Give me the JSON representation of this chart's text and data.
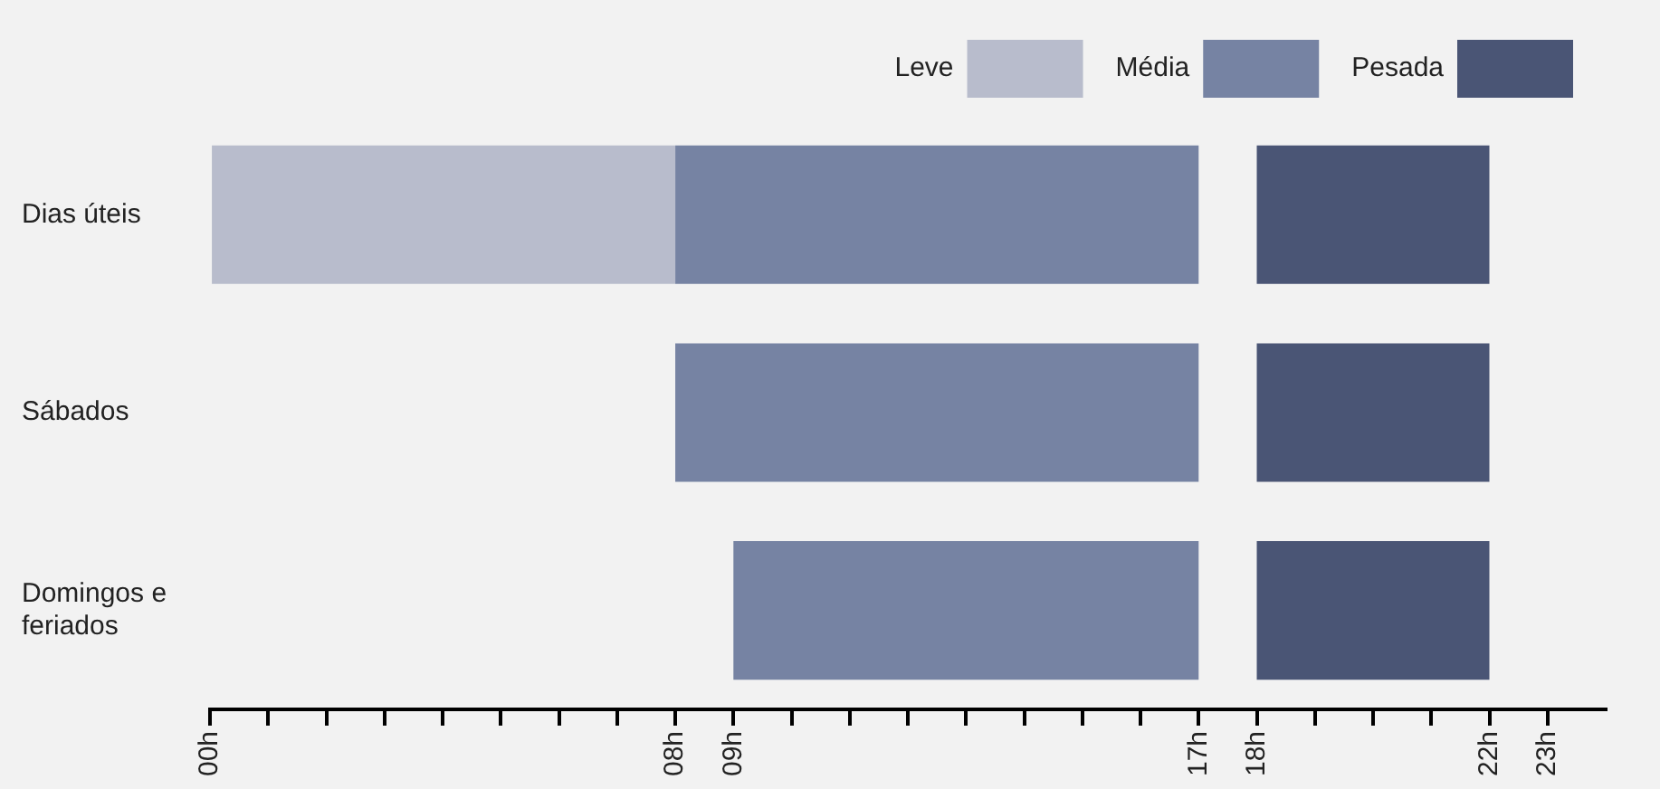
{
  "chart_data": {
    "type": "bar",
    "orientation": "horizontal",
    "categories": [
      "Dias úteis",
      "Sábados",
      "Domingos e feriados"
    ],
    "series": [
      {
        "name": "Leve",
        "color": "#b8bccc",
        "values": [
          8,
          null,
          null
        ],
        "base": [
          0,
          null,
          null
        ]
      },
      {
        "name": "Média",
        "color": "#7683a3",
        "values": [
          9,
          9,
          8
        ],
        "base": [
          8,
          8,
          9
        ]
      },
      {
        "name": "Pesada",
        "color": "#4a5575",
        "values": [
          4,
          4,
          4
        ],
        "base": [
          18,
          18,
          18
        ]
      }
    ],
    "xlim": [
      0,
      24
    ],
    "xticks": [
      {
        "value": 0,
        "label": "00h"
      },
      {
        "value": 1,
        "label": null
      },
      {
        "value": 2,
        "label": null
      },
      {
        "value": 3,
        "label": null
      },
      {
        "value": 4,
        "label": null
      },
      {
        "value": 5,
        "label": null
      },
      {
        "value": 6,
        "label": null
      },
      {
        "value": 7,
        "label": null
      },
      {
        "value": 8,
        "label": "08h"
      },
      {
        "value": 9,
        "label": "09h"
      },
      {
        "value": 10,
        "label": null
      },
      {
        "value": 11,
        "label": null
      },
      {
        "value": 12,
        "label": null
      },
      {
        "value": 13,
        "label": null
      },
      {
        "value": 14,
        "label": null
      },
      {
        "value": 15,
        "label": null
      },
      {
        "value": 16,
        "label": null
      },
      {
        "value": 17,
        "label": "17h"
      },
      {
        "value": 18,
        "label": "18h"
      },
      {
        "value": 19,
        "label": null
      },
      {
        "value": 20,
        "label": null
      },
      {
        "value": 21,
        "label": null
      },
      {
        "value": 22,
        "label": "22h"
      },
      {
        "value": 23,
        "label": "23h"
      }
    ],
    "grid": false,
    "legend": "top right"
  }
}
